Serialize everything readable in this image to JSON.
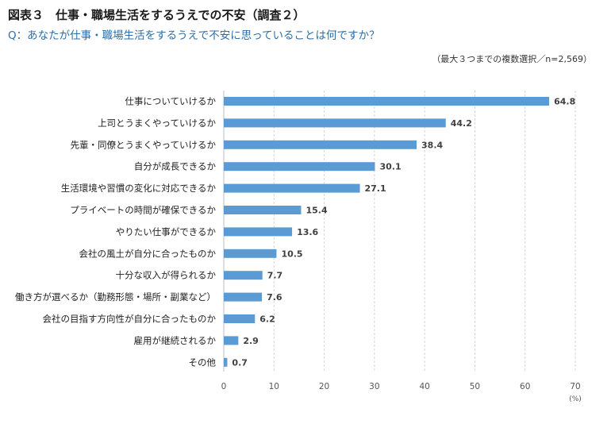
{
  "header": {
    "title": "図表３　仕事・職場生活をするうえでの不安（調査２）",
    "question": "Q：あなたが仕事・職場生活をするうえで不安に思っていることは何ですか？",
    "note": "（最大３つまでの複数選択／n=2,569）"
  },
  "chart_data": {
    "type": "bar",
    "orientation": "horizontal",
    "categories": [
      "仕事についていけるか",
      "上司とうまくやっていけるか",
      "先輩・同僚とうまくやっていけるか",
      "自分が成長できるか",
      "生活環境や習慣の変化に対応できるか",
      "プライベートの時間が確保できるか",
      "やりたい仕事ができるか",
      "会社の風土が自分に合ったものか",
      "十分な収入が得られるか",
      "働き方が選べるか（勤務形態・場所・副業など）",
      "会社の目指す方向性が自分に合ったものか",
      "雇用が継続されるか",
      "その他"
    ],
    "values": [
      64.8,
      44.2,
      38.4,
      30.1,
      27.1,
      15.4,
      13.6,
      10.5,
      7.7,
      7.6,
      6.2,
      2.9,
      0.7
    ],
    "value_labels": [
      "64.8",
      "44.2",
      "38.4",
      "30.1",
      "27.1",
      "15.4",
      "13.6",
      "10.5",
      "7.7",
      "7.6",
      "6.2",
      "2.9",
      "0.7"
    ],
    "xlim": [
      0,
      70
    ],
    "xticks": [
      0,
      10,
      20,
      30,
      40,
      50,
      60,
      70
    ],
    "unit": "(%)",
    "grid": true,
    "bar_color": "#5b9bd5"
  }
}
